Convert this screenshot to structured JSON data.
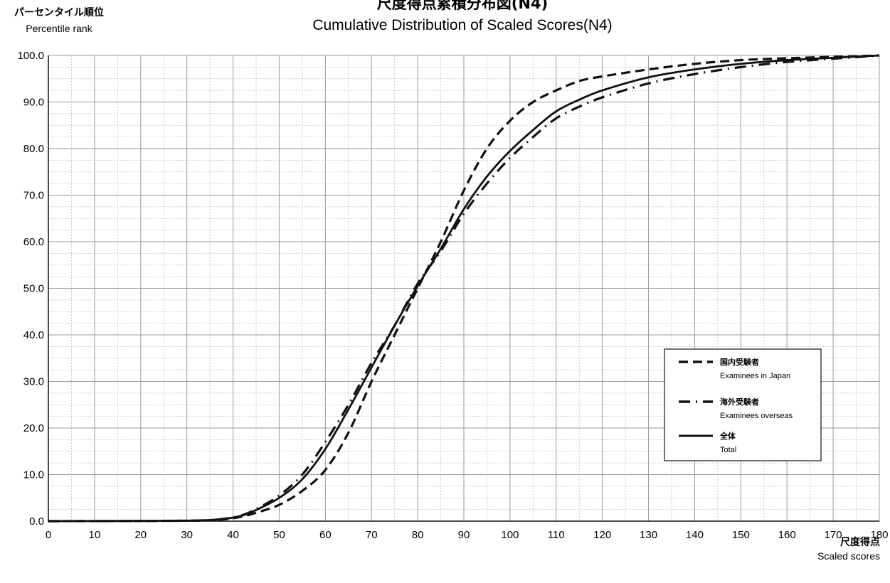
{
  "chart_data": {
    "type": "line",
    "title_jp": "尺度得点累積分布図(N4)",
    "title_en": "Cumulative Distribution of Scaled Scores(N4)",
    "ylabel_jp": "パーセンタイル順位",
    "ylabel_en": "Percentile rank",
    "xlabel_jp": "尺度得点",
    "xlabel_en": "Scaled scores",
    "xlim": [
      0,
      180
    ],
    "ylim": [
      0,
      100
    ],
    "xticks": [
      0,
      10,
      20,
      30,
      40,
      50,
      60,
      70,
      80,
      90,
      100,
      110,
      120,
      130,
      140,
      150,
      160,
      170,
      180
    ],
    "yticks": [
      "0.0",
      "10.0",
      "20.0",
      "30.0",
      "40.0",
      "50.0",
      "60.0",
      "70.0",
      "80.0",
      "90.0",
      "100.0"
    ],
    "grid": true,
    "legend_position": "bottom-right",
    "series": [
      {
        "name_jp": "国内受験者",
        "name_en": "Examinees in Japan",
        "style": "dashed",
        "x": [
          0,
          30,
          38,
          42,
          45,
          50,
          55,
          60,
          65,
          70,
          75,
          80,
          85,
          90,
          95,
          100,
          105,
          110,
          115,
          120,
          130,
          140,
          150,
          160,
          170,
          180
        ],
        "y": [
          0,
          0.1,
          0.4,
          1.0,
          1.8,
          3.5,
          6.5,
          11,
          19,
          30,
          40,
          50,
          60,
          71,
          80,
          86,
          90,
          92.5,
          94.5,
          95.5,
          97,
          98.2,
          99,
          99.4,
          99.7,
          100
        ]
      },
      {
        "name_jp": "海外受験者",
        "name_en": "Examinees overseas",
        "style": "dash-dot",
        "x": [
          0,
          30,
          38,
          42,
          45,
          50,
          55,
          60,
          65,
          70,
          75,
          80,
          85,
          90,
          95,
          100,
          105,
          110,
          115,
          120,
          130,
          140,
          150,
          160,
          170,
          180
        ],
        "y": [
          0,
          0.1,
          0.5,
          1.3,
          2.6,
          5.5,
          10,
          17,
          25,
          34,
          42,
          51,
          58,
          66,
          72.5,
          78,
          82.5,
          86.5,
          89,
          91,
          94,
          96,
          97.5,
          98.6,
          99.3,
          100
        ]
      },
      {
        "name_jp": "全体",
        "name_en": "Total",
        "style": "solid",
        "x": [
          0,
          30,
          38,
          42,
          45,
          50,
          55,
          60,
          65,
          70,
          75,
          80,
          85,
          90,
          95,
          100,
          105,
          110,
          115,
          120,
          130,
          140,
          150,
          160,
          170,
          180
        ],
        "y": [
          0,
          0.1,
          0.5,
          1.2,
          2.4,
          5.0,
          9.0,
          15.5,
          24,
          33,
          42,
          50.5,
          58.5,
          67,
          74,
          79.5,
          84,
          88,
          90.5,
          92.5,
          95.3,
          97,
          98.2,
          99,
          99.5,
          100
        ]
      }
    ]
  }
}
